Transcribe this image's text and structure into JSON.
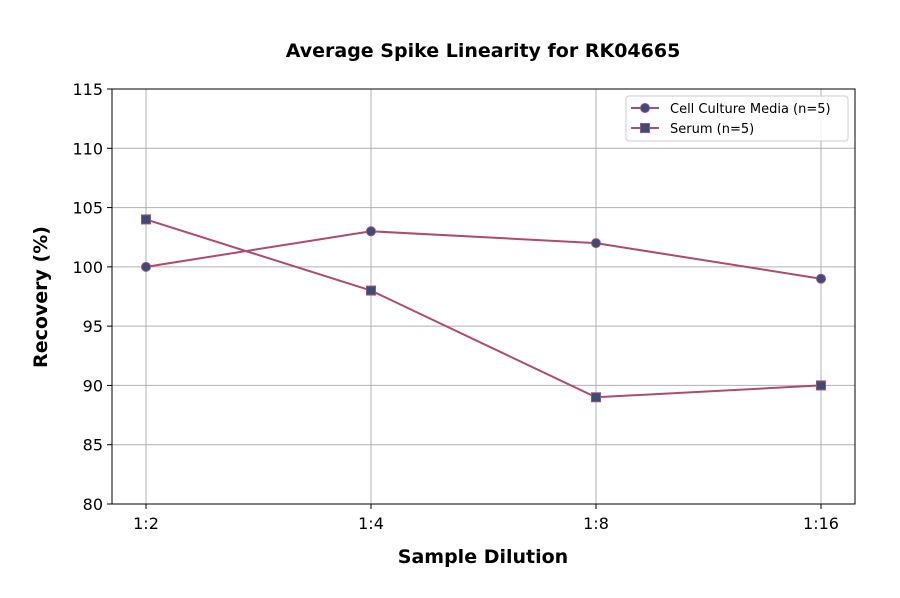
{
  "chart_data": {
    "type": "line",
    "title": "Average Spike Linearity for RK04665",
    "xlabel": "Sample Dilution",
    "ylabel": "Recovery (%)",
    "categories": [
      "1:2",
      "1:4",
      "1:8",
      "1:16"
    ],
    "ylim": [
      80,
      115
    ],
    "yticks": [
      80,
      85,
      90,
      95,
      100,
      105,
      110,
      115
    ],
    "grid": true,
    "legend_position": "top-right",
    "series": [
      {
        "name": "Cell Culture Media (n=5)",
        "marker": "circle",
        "values": [
          100,
          103,
          102,
          99
        ]
      },
      {
        "name": "Serum (n=5)",
        "marker": "square",
        "values": [
          104,
          98,
          89,
          90
        ]
      }
    ],
    "colors": {
      "line": "#b04a6e",
      "marker": "#34507a"
    }
  }
}
